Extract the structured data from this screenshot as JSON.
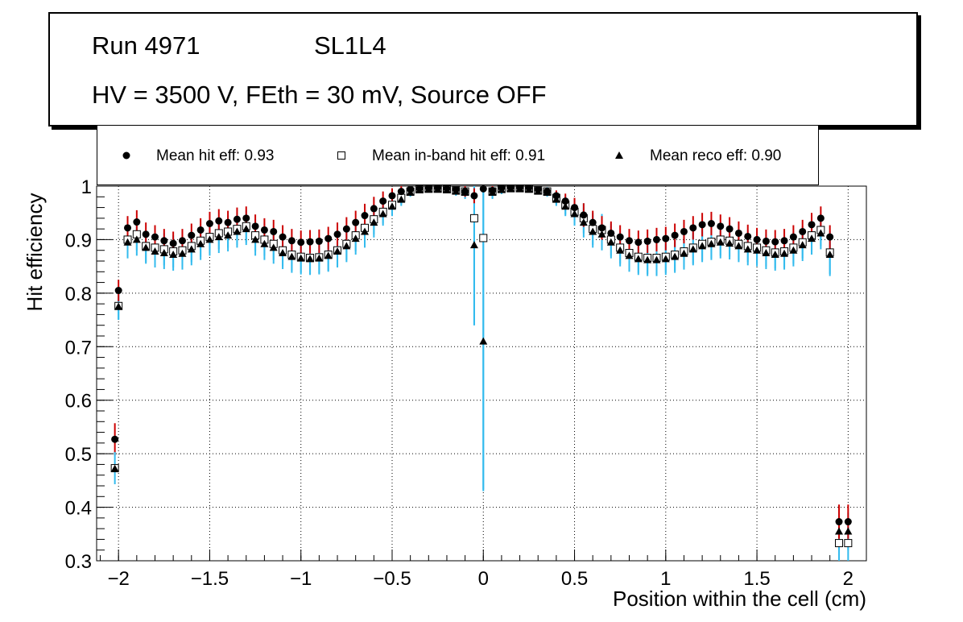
{
  "title_box": {
    "run": "Run 4971",
    "layer": "SL1L4",
    "conditions": "HV = 3500 V, FEth = 30 mV, Source OFF"
  },
  "legend": {
    "hit": "Mean hit  eff: 0.93",
    "inband": "Mean in-band hit eff: 0.91",
    "reco": "Mean reco eff: 0.90"
  },
  "colors": {
    "hit_err": "#cc0000",
    "inband_err": "#33bbee",
    "reco_err": "#33bbee",
    "grid": "#000000"
  },
  "chart_data": {
    "type": "scatter",
    "xlabel": "Position within the cell (cm)",
    "ylabel": "Hit efficiency",
    "xlim": [
      -2.12,
      2.1
    ],
    "ylim": [
      0.3,
      1.0
    ],
    "grid": true,
    "legend_position": "top",
    "x_ticks": [
      -2,
      -1.5,
      -1,
      -0.5,
      0,
      0.5,
      1,
      1.5,
      2
    ],
    "x_tick_labels": [
      "−2",
      "−1.5",
      "−1",
      "−0.5",
      "0",
      "0.5",
      "1",
      "1.5",
      "2"
    ],
    "y_ticks": [
      0.3,
      0.4,
      0.5,
      0.6,
      0.7,
      0.8,
      0.9,
      1.0
    ],
    "y_tick_labels": [
      "0.3",
      "0.4",
      "0.5",
      "0.6",
      "0.7",
      "0.8",
      "0.9",
      "1"
    ],
    "x": [
      -2.0,
      -1.95,
      -1.9,
      -1.85,
      -1.8,
      -1.75,
      -1.7,
      -1.65,
      -1.6,
      -1.55,
      -1.5,
      -1.45,
      -1.4,
      -1.35,
      -1.3,
      -1.25,
      -1.2,
      -1.15,
      -1.1,
      -1.05,
      -1.0,
      -0.95,
      -0.9,
      -0.85,
      -0.8,
      -0.75,
      -0.7,
      -0.65,
      -0.6,
      -0.55,
      -0.5,
      -0.45,
      -0.4,
      -0.35,
      -0.3,
      -0.25,
      -0.2,
      -0.15,
      -0.1,
      -0.05,
      0.0,
      0.05,
      0.1,
      0.15,
      0.2,
      0.25,
      0.3,
      0.35,
      0.4,
      0.45,
      0.5,
      0.55,
      0.6,
      0.65,
      0.7,
      0.75,
      0.8,
      0.85,
      0.9,
      0.95,
      1.0,
      1.05,
      1.1,
      1.15,
      1.2,
      1.25,
      1.3,
      1.35,
      1.4,
      1.45,
      1.5,
      1.55,
      1.6,
      1.65,
      1.7,
      1.75,
      1.8,
      1.85,
      1.9,
      1.95,
      2.0
    ],
    "series": [
      {
        "name": "Mean hit eff",
        "marker": "circle",
        "values": [
          0.805,
          0.922,
          0.933,
          0.91,
          0.905,
          0.898,
          0.893,
          0.898,
          0.908,
          0.918,
          0.93,
          0.935,
          0.932,
          0.938,
          0.94,
          0.925,
          0.918,
          0.915,
          0.905,
          0.898,
          0.895,
          0.896,
          0.897,
          0.902,
          0.91,
          0.92,
          0.932,
          0.945,
          0.958,
          0.972,
          0.982,
          0.99,
          0.994,
          0.996,
          0.997,
          0.997,
          0.996,
          0.994,
          0.99,
          0.982,
          0.995,
          0.992,
          0.997,
          0.998,
          0.998,
          0.997,
          0.994,
          0.99,
          0.982,
          0.972,
          0.96,
          0.946,
          0.932,
          0.922,
          0.912,
          0.905,
          0.898,
          0.895,
          0.897,
          0.9,
          0.902,
          0.908,
          0.915,
          0.922,
          0.928,
          0.93,
          0.925,
          0.92,
          0.912,
          0.906,
          0.9,
          0.897,
          0.896,
          0.898,
          0.905,
          0.915,
          0.928,
          0.94,
          0.905,
          0.373,
          0.373
        ],
        "errors": [
          0.02,
          0.022,
          0.022,
          0.022,
          0.022,
          0.022,
          0.022,
          0.022,
          0.022,
          0.022,
          0.022,
          0.022,
          0.022,
          0.022,
          0.022,
          0.022,
          0.022,
          0.022,
          0.022,
          0.022,
          0.022,
          0.022,
          0.022,
          0.022,
          0.022,
          0.022,
          0.022,
          0.022,
          0.022,
          0.018,
          0.014,
          0.01,
          0.006,
          0.004,
          0.003,
          0.003,
          0.004,
          0.006,
          0.01,
          0.014,
          0.006,
          0.01,
          0.006,
          0.004,
          0.003,
          0.003,
          0.004,
          0.006,
          0.01,
          0.014,
          0.018,
          0.022,
          0.022,
          0.022,
          0.022,
          0.022,
          0.022,
          0.022,
          0.022,
          0.022,
          0.022,
          0.022,
          0.022,
          0.022,
          0.022,
          0.022,
          0.022,
          0.022,
          0.022,
          0.022,
          0.022,
          0.022,
          0.022,
          0.022,
          0.022,
          0.022,
          0.022,
          0.022,
          0.022,
          0.032,
          0.032
        ]
      },
      {
        "name": "Mean in-band hit eff",
        "marker": "open-square",
        "values": [
          0.776,
          0.9,
          0.91,
          0.888,
          0.885,
          0.882,
          0.878,
          0.88,
          0.888,
          0.898,
          0.905,
          0.912,
          0.915,
          0.92,
          0.925,
          0.908,
          0.9,
          0.892,
          0.88,
          0.872,
          0.868,
          0.866,
          0.867,
          0.872,
          0.88,
          0.892,
          0.908,
          0.922,
          0.938,
          0.952,
          0.965,
          0.978,
          0.99,
          0.994,
          0.995,
          0.995,
          0.994,
          0.992,
          0.99,
          0.94,
          0.903,
          0.99,
          0.995,
          0.996,
          0.996,
          0.995,
          0.992,
          0.99,
          0.978,
          0.965,
          0.952,
          0.94,
          0.92,
          0.918,
          0.9,
          0.885,
          0.875,
          0.868,
          0.866,
          0.866,
          0.868,
          0.872,
          0.878,
          0.885,
          0.892,
          0.896,
          0.9,
          0.898,
          0.892,
          0.888,
          0.885,
          0.88,
          0.876,
          0.878,
          0.885,
          0.895,
          0.908,
          0.918,
          0.876,
          0.333,
          0.333
        ],
        "errors": [
          0.025,
          0.03,
          0.03,
          0.03,
          0.03,
          0.03,
          0.03,
          0.03,
          0.03,
          0.03,
          0.03,
          0.03,
          0.03,
          0.03,
          0.03,
          0.03,
          0.03,
          0.03,
          0.03,
          0.03,
          0.03,
          0.03,
          0.03,
          0.03,
          0.03,
          0.03,
          0.03,
          0.03,
          0.028,
          0.022,
          0.018,
          0.012,
          0.008,
          0.005,
          0.004,
          0.004,
          0.005,
          0.008,
          0.012,
          0.2,
          0.47,
          0.012,
          0.008,
          0.005,
          0.004,
          0.004,
          0.005,
          0.008,
          0.012,
          0.018,
          0.022,
          0.028,
          0.03,
          0.03,
          0.03,
          0.03,
          0.03,
          0.03,
          0.03,
          0.03,
          0.03,
          0.03,
          0.03,
          0.03,
          0.03,
          0.03,
          0.03,
          0.03,
          0.03,
          0.03,
          0.03,
          0.03,
          0.03,
          0.03,
          0.03,
          0.03,
          0.03,
          0.03,
          0.04,
          0.035,
          0.035
        ]
      },
      {
        "name": "Mean reco eff",
        "marker": "triangle",
        "values": [
          0.775,
          0.895,
          0.9,
          0.885,
          0.878,
          0.875,
          0.872,
          0.874,
          0.882,
          0.892,
          0.9,
          0.905,
          0.908,
          0.915,
          0.92,
          0.9,
          0.892,
          0.885,
          0.875,
          0.868,
          0.865,
          0.864,
          0.865,
          0.87,
          0.878,
          0.888,
          0.902,
          0.915,
          0.932,
          0.948,
          0.962,
          0.975,
          0.988,
          0.993,
          0.994,
          0.994,
          0.993,
          0.99,
          0.988,
          0.89,
          0.71,
          0.988,
          0.993,
          0.995,
          0.995,
          0.994,
          0.99,
          0.988,
          0.975,
          0.962,
          0.948,
          0.932,
          0.915,
          0.91,
          0.895,
          0.88,
          0.87,
          0.864,
          0.862,
          0.862,
          0.864,
          0.868,
          0.874,
          0.882,
          0.888,
          0.892,
          0.895,
          0.893,
          0.888,
          0.882,
          0.88,
          0.875,
          0.872,
          0.874,
          0.88,
          0.89,
          0.902,
          0.912,
          0.872,
          0.355,
          0.355
        ],
        "errors": [
          0.025,
          0.03,
          0.03,
          0.03,
          0.03,
          0.03,
          0.03,
          0.03,
          0.03,
          0.03,
          0.03,
          0.03,
          0.03,
          0.03,
          0.03,
          0.03,
          0.03,
          0.03,
          0.03,
          0.03,
          0.03,
          0.03,
          0.03,
          0.03,
          0.03,
          0.03,
          0.03,
          0.03,
          0.028,
          0.022,
          0.018,
          0.012,
          0.008,
          0.005,
          0.004,
          0.004,
          0.005,
          0.008,
          0.012,
          0.15,
          0.28,
          0.012,
          0.008,
          0.005,
          0.004,
          0.004,
          0.005,
          0.008,
          0.012,
          0.018,
          0.022,
          0.028,
          0.03,
          0.03,
          0.03,
          0.03,
          0.03,
          0.03,
          0.03,
          0.03,
          0.03,
          0.03,
          0.03,
          0.03,
          0.03,
          0.03,
          0.03,
          0.03,
          0.03,
          0.03,
          0.03,
          0.03,
          0.03,
          0.03,
          0.03,
          0.03,
          0.03,
          0.03,
          0.04,
          0.035,
          0.035
        ]
      }
    ],
    "extra_points": {
      "x": -2.02,
      "hit": 0.527,
      "inband": 0.473,
      "reco": 0.472
    }
  }
}
